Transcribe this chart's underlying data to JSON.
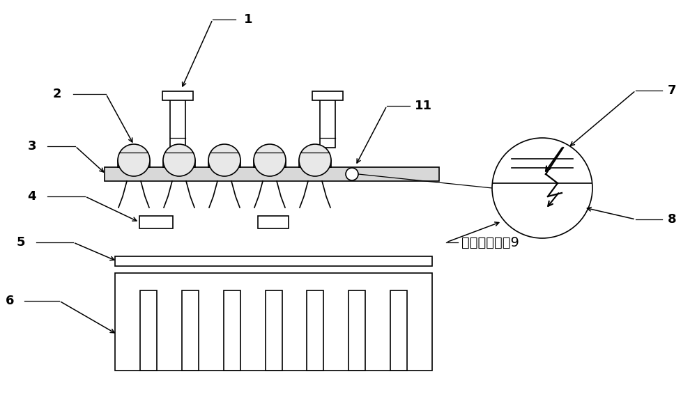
{
  "bg_color": "#ffffff",
  "lc": "#000000",
  "label_fs": 13,
  "zh_fs": 14,
  "zoom_label": "局部放大视图9",
  "fig_w": 10.0,
  "fig_h": 5.7,
  "dpi": 100
}
